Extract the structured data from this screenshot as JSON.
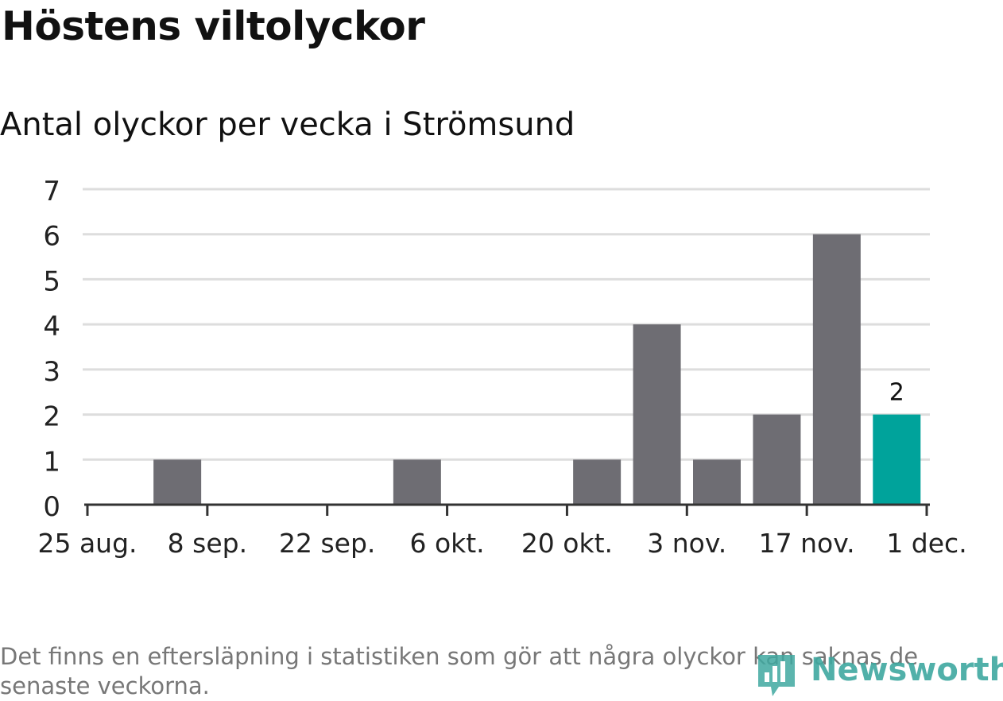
{
  "header": {
    "title": "Höstens viltolyckor",
    "subtitle": "Antal olyckor per vecka i Strömsund"
  },
  "footnote": "Det finns en eftersläpning i statistiken som gör att några olyckor kan saknas de senaste veckorna.",
  "logo": {
    "text": "Newsworthy",
    "icon": "newsworthy-chart-icon",
    "color": "#3fa8a0"
  },
  "chart_data": {
    "type": "bar",
    "x_axis_type": "date",
    "x": [
      "2019-09-02",
      "2019-09-09",
      "2019-09-16",
      "2019-09-23",
      "2019-09-30",
      "2019-10-07",
      "2019-10-14",
      "2019-10-21",
      "2019-10-28",
      "2019-11-04",
      "2019-11-11",
      "2019-11-18",
      "2019-11-25"
    ],
    "values": [
      1,
      0,
      0,
      0,
      1,
      0,
      0,
      1,
      4,
      1,
      2,
      6,
      2
    ],
    "highlight_index": 12,
    "highlight_label": "2",
    "xlim": [
      "2019-08-26",
      "2019-12-02"
    ],
    "x_ticks": [
      "2019-08-26",
      "2019-09-09",
      "2019-09-23",
      "2019-10-07",
      "2019-10-21",
      "2019-11-04",
      "2019-11-18",
      "2019-12-02"
    ],
    "x_tick_labels": [
      "25 aug.",
      "8 sep.",
      "22 sep.",
      "6 okt.",
      "20 okt.",
      "3 nov.",
      "17 nov.",
      "1 dec."
    ],
    "ylim": [
      0,
      7
    ],
    "y_ticks": [
      "0",
      "1",
      "2",
      "3",
      "4",
      "5",
      "6",
      "7"
    ],
    "grid": true,
    "bar_color": "#6e6d73",
    "highlight_color": "#00a39b",
    "grid_color": "#dddddd",
    "axis_color": "#333333"
  }
}
